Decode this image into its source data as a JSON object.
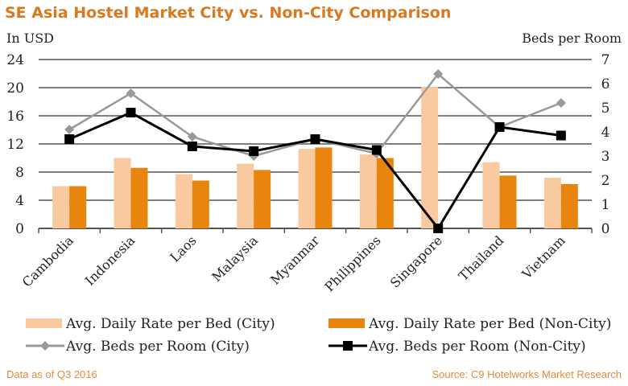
{
  "chart_data": {
    "type": "bar+line",
    "title": "SE Asia Hostel Market City vs. Non-City Comparison",
    "ylabel": "In USD",
    "y2label": "Beds per Room",
    "ylim": [
      0,
      24
    ],
    "yticks": [
      0,
      4,
      8,
      12,
      16,
      20,
      24
    ],
    "y2lim": [
      0,
      7
    ],
    "y2ticks": [
      0,
      1,
      2,
      3,
      4,
      5,
      6,
      7
    ],
    "grid": true,
    "legend": "bottom",
    "categories": [
      "Cambodia",
      "Indonesia",
      "Laos",
      "Malaysia",
      "Myanmar",
      "Philippines",
      "Singapore",
      "Thailand",
      "Vietnam"
    ],
    "series": [
      {
        "name": "Avg. Daily Rate per Bed (City)",
        "type": "bar",
        "axis": "left",
        "color": "#f9c9a0",
        "values": [
          6.0,
          10.0,
          7.7,
          9.2,
          11.3,
          10.5,
          20.1,
          9.4,
          7.2
        ]
      },
      {
        "name": "Avg. Daily Rate per Bed (Non-City)",
        "type": "bar",
        "axis": "left",
        "color": "#e8850f",
        "values": [
          6.0,
          8.6,
          6.8,
          8.3,
          11.5,
          10.0,
          0,
          7.5,
          6.3
        ]
      },
      {
        "name": "Avg. Beds per Room (City)",
        "type": "line",
        "marker": "diamond",
        "axis": "right",
        "color": "#999999",
        "values": [
          4.1,
          5.6,
          3.8,
          3.0,
          3.7,
          3.1,
          6.4,
          4.2,
          5.2
        ]
      },
      {
        "name": "Avg. Beds per Room (Non-City)",
        "type": "line",
        "marker": "square",
        "axis": "right",
        "color": "#000000",
        "values": [
          3.7,
          4.8,
          3.4,
          3.2,
          3.7,
          3.25,
          0,
          4.2,
          3.85
        ]
      }
    ]
  },
  "footer": {
    "left": "Data as of Q3 2016",
    "right": "Source: C9 Hotelworks Market Research"
  },
  "colors": {
    "title": "#d9781f",
    "footer": "#e08a3c"
  }
}
